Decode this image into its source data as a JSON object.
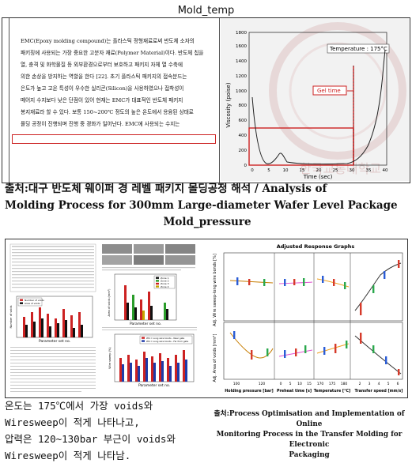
{
  "heading_top": "Mold_temp",
  "doc_text": [
    "EMC(Epoxy  molding  compound)는  플라스틱  정형재료로써  반도체  소자의",
    "패키징에  사용되는  가장  중요한  고분자  재료(Polymer Material)이다. 반도체  칩을",
    "열,  충격  및  화학물질  등  외부환경으로부터  보호하고  패키지  자체  열  수축에",
    "의한  손상을  방지하는  역할을  한다  [22].  초기  플라스틱  패키지의  접속분드는",
    "은도가  높고  고온  특성이  우수한  실리콘(Silicon)을  사용하였으나  접착성이",
    "떼어지  수지보다  낮은  단점이  있어  현재는  EMC가  대표적인  반도체  패키지",
    "봉지재료라  할  수  있다.  보통  150~200℃  정도의  높은  온도에서  용융된  상태로",
    "몰딩  공정이  진행되며  진행  중  경화가  일어난다.  EMC에  사용되는  수지는"
  ],
  "viscosity_chart": {
    "temperature_label": "Temperature : 175°C",
    "gel_time_label": "Gel time",
    "ylabel": "Viscosity (poise)",
    "xlabel": "Time (sec)",
    "y_ticks": [
      "0",
      "200",
      "400",
      "600",
      "800",
      "1000",
      "1200",
      "1400",
      "1600",
      "1800"
    ],
    "x_ticks": [
      "0",
      "5",
      "10",
      "15",
      "20",
      "25",
      "30",
      "35",
      "40"
    ],
    "watermark": "한국교통대학교"
  },
  "caption_top": {
    "line1": "출처:대구 반도체 웨이퍼 경 레벨 패키지 몰딩공정 해석 / Analysis of",
    "line2": "Molding Process for 300mm Large-diameter Wafer Level Package",
    "line3": "Mold_pressure"
  },
  "paper_panel": {
    "fig_labels": {
      "voids_legend": [
        "Number of voids",
        "Area of voids"
      ],
      "param_axis": "Parameter set no.",
      "zone_legend": [
        "Zone 1",
        "Zone 2",
        "Zone 3",
        "Zone 4"
      ],
      "wire_legend": [
        "WS = Long wire bonds - Near gate",
        "WS = Long wire bonds - Far from gate"
      ],
      "y_voids": "Number of voids",
      "y_area": "Area of voids (mm²)",
      "y_wire": "Wire sweep (%)"
    }
  },
  "response_graphs": {
    "title": "Adjusted Response Graphs",
    "y_top": "Adj. Wire sweep-long wire bonds [%]",
    "y_bottom": "Adj. Area of voids [mm²]",
    "x_groups": [
      {
        "label": "Holding pressure [bar]",
        "ticks": [
          "100",
          "120"
        ]
      },
      {
        "label": "Preheat time [s]",
        "ticks": [
          "0",
          "5",
          "10",
          "15"
        ]
      },
      {
        "label": "Temperature [°C]",
        "ticks": [
          "170",
          "175",
          "180"
        ]
      },
      {
        "label": "Transfer speed [mm/s]",
        "ticks": [
          "2",
          "3",
          "4",
          "5",
          "6"
        ]
      }
    ]
  },
  "korean_text": [
    "온도는 175℃에서 가장 voids와",
    "Wiresweep이 적게 나타나고,",
    "압력은 120~130bar 부근이 voids와",
    "Wiresweep이 적게 나타남."
  ],
  "caption_bottom": {
    "line1": "출처:Process Optimisation and Implementation of Online",
    "line2": "Monitoring Process in the Transfer Molding for Electronic",
    "line3": "Packaging"
  },
  "colors": {
    "accent_red": "#cc2222",
    "chart_bg": "#f2f2f2"
  }
}
